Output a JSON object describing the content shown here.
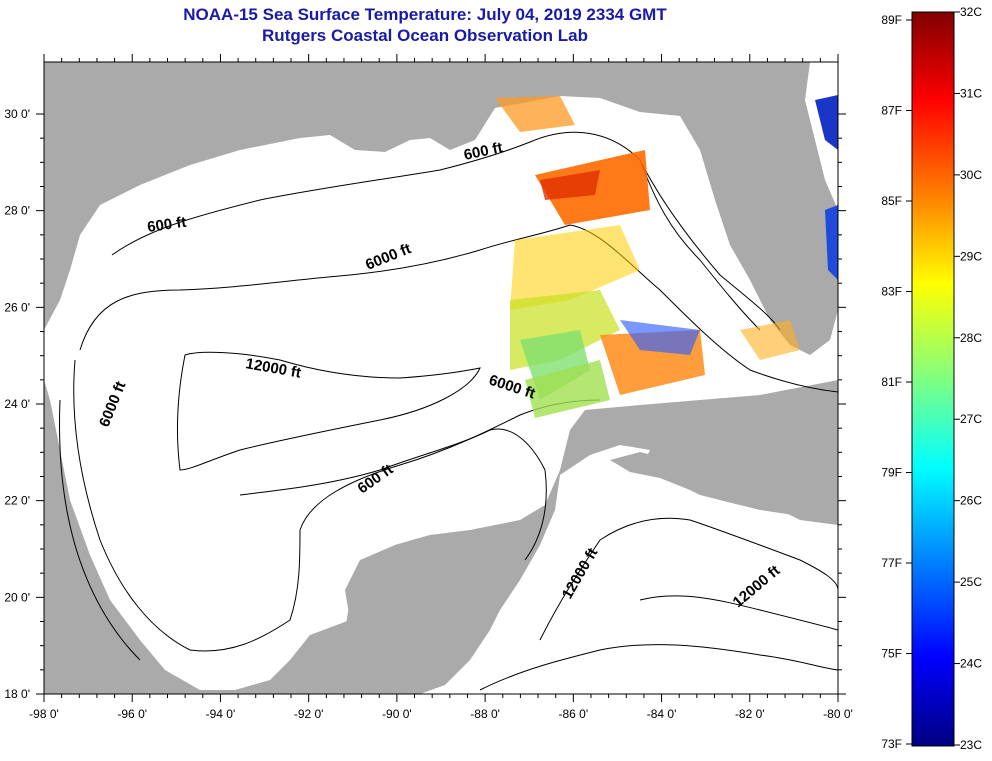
{
  "title": {
    "line1": "NOAA-15 Sea Surface Temperature:  July 04, 2019 2334 GMT",
    "line2": "Rutgers Coastal Ocean Observation Lab"
  },
  "map": {
    "x_ticks": [
      "-98 0'",
      "-96 0'",
      "-94 0'",
      "-92 0'",
      "-90 0'",
      "-88 0'",
      "-86 0'",
      "-84 0'",
      "-82 0'",
      "-80 0'"
    ],
    "y_ticks": [
      "30 0'",
      "28 0'",
      "26 0'",
      "24 0'",
      "22 0'",
      "20 0'",
      "18 0'"
    ],
    "contour_labels": [
      "600 ft",
      "600 ft",
      "6000 ft",
      "12000 ft",
      "6000 ft",
      "6000 ft",
      "600 ft",
      "12000 ft",
      "12000 ft"
    ],
    "colors": {
      "land": "#aaaaaa",
      "ocean": "#ffffff",
      "contour": "#000000"
    }
  },
  "colorbar": {
    "f_labels": [
      "89F",
      "87F",
      "85F",
      "83F",
      "81F",
      "79F",
      "77F",
      "75F",
      "73F"
    ],
    "c_labels": [
      "32C",
      "31C",
      "30C",
      "29C",
      "28C",
      "27C",
      "26C",
      "25C",
      "24C",
      "23C"
    ],
    "gradient_colors": [
      "#800000",
      "#ff0000",
      "#ff8000",
      "#ffff00",
      "#80ff80",
      "#00ffff",
      "#0080ff",
      "#0000ff",
      "#000080"
    ]
  }
}
